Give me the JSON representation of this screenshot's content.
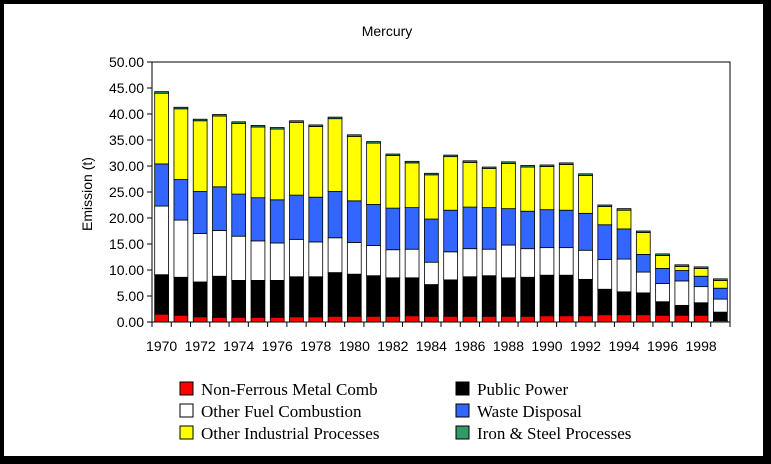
{
  "chart_data": {
    "type": "bar",
    "stacked": true,
    "title": "Mercury",
    "ylabel": "Emission (t)",
    "xlabel": "",
    "ylim": [
      0,
      50
    ],
    "ytick_labels": [
      "0.00",
      "5.00",
      "10.00",
      "15.00",
      "20.00",
      "25.00",
      "30.00",
      "35.00",
      "40.00",
      "45.00",
      "50.00"
    ],
    "categories": [
      "1970",
      "1971",
      "1972",
      "1973",
      "1974",
      "1975",
      "1976",
      "1977",
      "1978",
      "1979",
      "1980",
      "1981",
      "1982",
      "1983",
      "1984",
      "1985",
      "1986",
      "1987",
      "1988",
      "1989",
      "1990",
      "1991",
      "1992",
      "1993",
      "1994",
      "1995",
      "1996",
      "1997",
      "1998",
      "1999"
    ],
    "x_tick_labels": [
      "1970",
      "1972",
      "1974",
      "1976",
      "1978",
      "1980",
      "1982",
      "1984",
      "1986",
      "1988",
      "1990",
      "1992",
      "1994",
      "1996",
      "1998"
    ],
    "grid": false,
    "legend_position": "bottom",
    "series": [
      {
        "name": "Non-Ferrous Metal Comb",
        "color": "#ff0000",
        "values": [
          1.5,
          1.3,
          1.0,
          0.9,
          0.9,
          0.9,
          0.9,
          1.0,
          1.0,
          1.1,
          1.1,
          1.1,
          1.1,
          1.2,
          1.1,
          1.1,
          1.1,
          1.1,
          1.1,
          1.1,
          1.2,
          1.2,
          1.2,
          1.4,
          1.4,
          1.4,
          1.3,
          1.3,
          1.3,
          0.3
        ]
      },
      {
        "name": "Public Power",
        "color": "#000000",
        "values": [
          7.6,
          7.3,
          6.7,
          7.9,
          7.1,
          7.1,
          7.1,
          7.7,
          7.7,
          8.4,
          8.1,
          7.8,
          7.4,
          7.3,
          6.1,
          7.0,
          7.6,
          7.8,
          7.4,
          7.5,
          7.8,
          7.8,
          7.0,
          4.9,
          4.4,
          4.2,
          2.6,
          1.9,
          2.4,
          1.6
        ]
      },
      {
        "name": "Other Fuel Combustion",
        "color": "#ffffff",
        "values": [
          13.2,
          11.0,
          9.3,
          8.8,
          8.5,
          7.6,
          7.2,
          7.2,
          6.7,
          6.7,
          6.1,
          5.8,
          5.4,
          5.5,
          4.3,
          5.4,
          5.4,
          5.1,
          6.3,
          5.5,
          5.3,
          5.3,
          5.6,
          5.7,
          6.3,
          4.0,
          3.5,
          4.7,
          3.1,
          2.5
        ]
      },
      {
        "name": "Waste Disposal",
        "color": "#3366ff",
        "values": [
          8.1,
          7.8,
          8.1,
          8.4,
          8.1,
          8.3,
          8.3,
          8.5,
          8.6,
          8.9,
          8.0,
          7.9,
          8.0,
          8.0,
          8.3,
          8.0,
          8.0,
          8.0,
          7.0,
          7.2,
          7.3,
          7.2,
          7.1,
          6.7,
          5.8,
          3.4,
          2.9,
          2.0,
          2.0,
          2.1
        ]
      },
      {
        "name": "Other Industrial Processes",
        "color": "#ffff00",
        "values": [
          13.6,
          13.6,
          13.6,
          13.6,
          13.6,
          13.6,
          13.6,
          14.0,
          13.6,
          14.0,
          12.4,
          11.8,
          10.1,
          8.6,
          8.5,
          10.3,
          8.6,
          7.5,
          8.7,
          8.5,
          8.3,
          8.8,
          7.3,
          3.5,
          3.6,
          4.2,
          2.5,
          0.8,
          1.5,
          1.5
        ]
      },
      {
        "name": "Iron & Steel Processes",
        "color": "#339966",
        "values": [
          0.3,
          0.3,
          0.3,
          0.3,
          0.3,
          0.3,
          0.3,
          0.3,
          0.3,
          0.3,
          0.3,
          0.3,
          0.3,
          0.3,
          0.3,
          0.3,
          0.3,
          0.3,
          0.3,
          0.3,
          0.3,
          0.3,
          0.3,
          0.3,
          0.3,
          0.3,
          0.3,
          0.3,
          0.3,
          0.3
        ]
      }
    ]
  }
}
